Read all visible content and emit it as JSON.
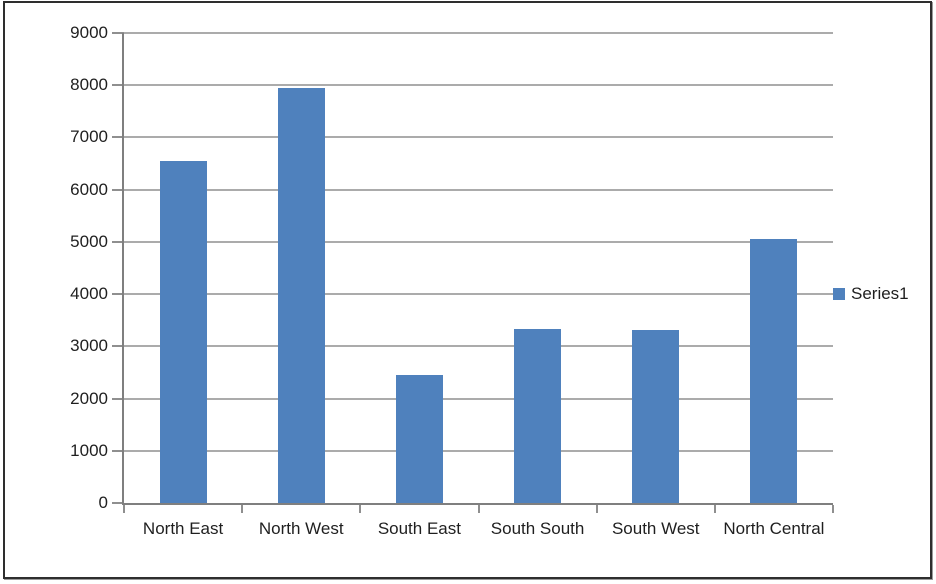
{
  "chart_data": {
    "type": "bar",
    "title": "",
    "xlabel": "",
    "ylabel": "",
    "categories": [
      "North East",
      "North West",
      "South East",
      "South South",
      "South West",
      "North Central"
    ],
    "series": [
      {
        "name": "Series1",
        "values": [
          6550,
          7950,
          2450,
          3330,
          3310,
          5050
        ]
      }
    ],
    "ylim": [
      0,
      9000
    ],
    "ytick_step": 1000,
    "ytick_labels": [
      "0",
      "1000",
      "2000",
      "3000",
      "4000",
      "5000",
      "6000",
      "7000",
      "8000",
      "9000"
    ],
    "grid": "horizontal",
    "legend_position": "right",
    "colors": {
      "bar": "#4f81bd",
      "gridline": "#8f8f8f",
      "axis": "#7f7f7f",
      "text": "#1f1f1f",
      "frame_border": "#2e2e2e",
      "background": "#ffffff"
    }
  },
  "legend": {
    "label": "Series1"
  }
}
